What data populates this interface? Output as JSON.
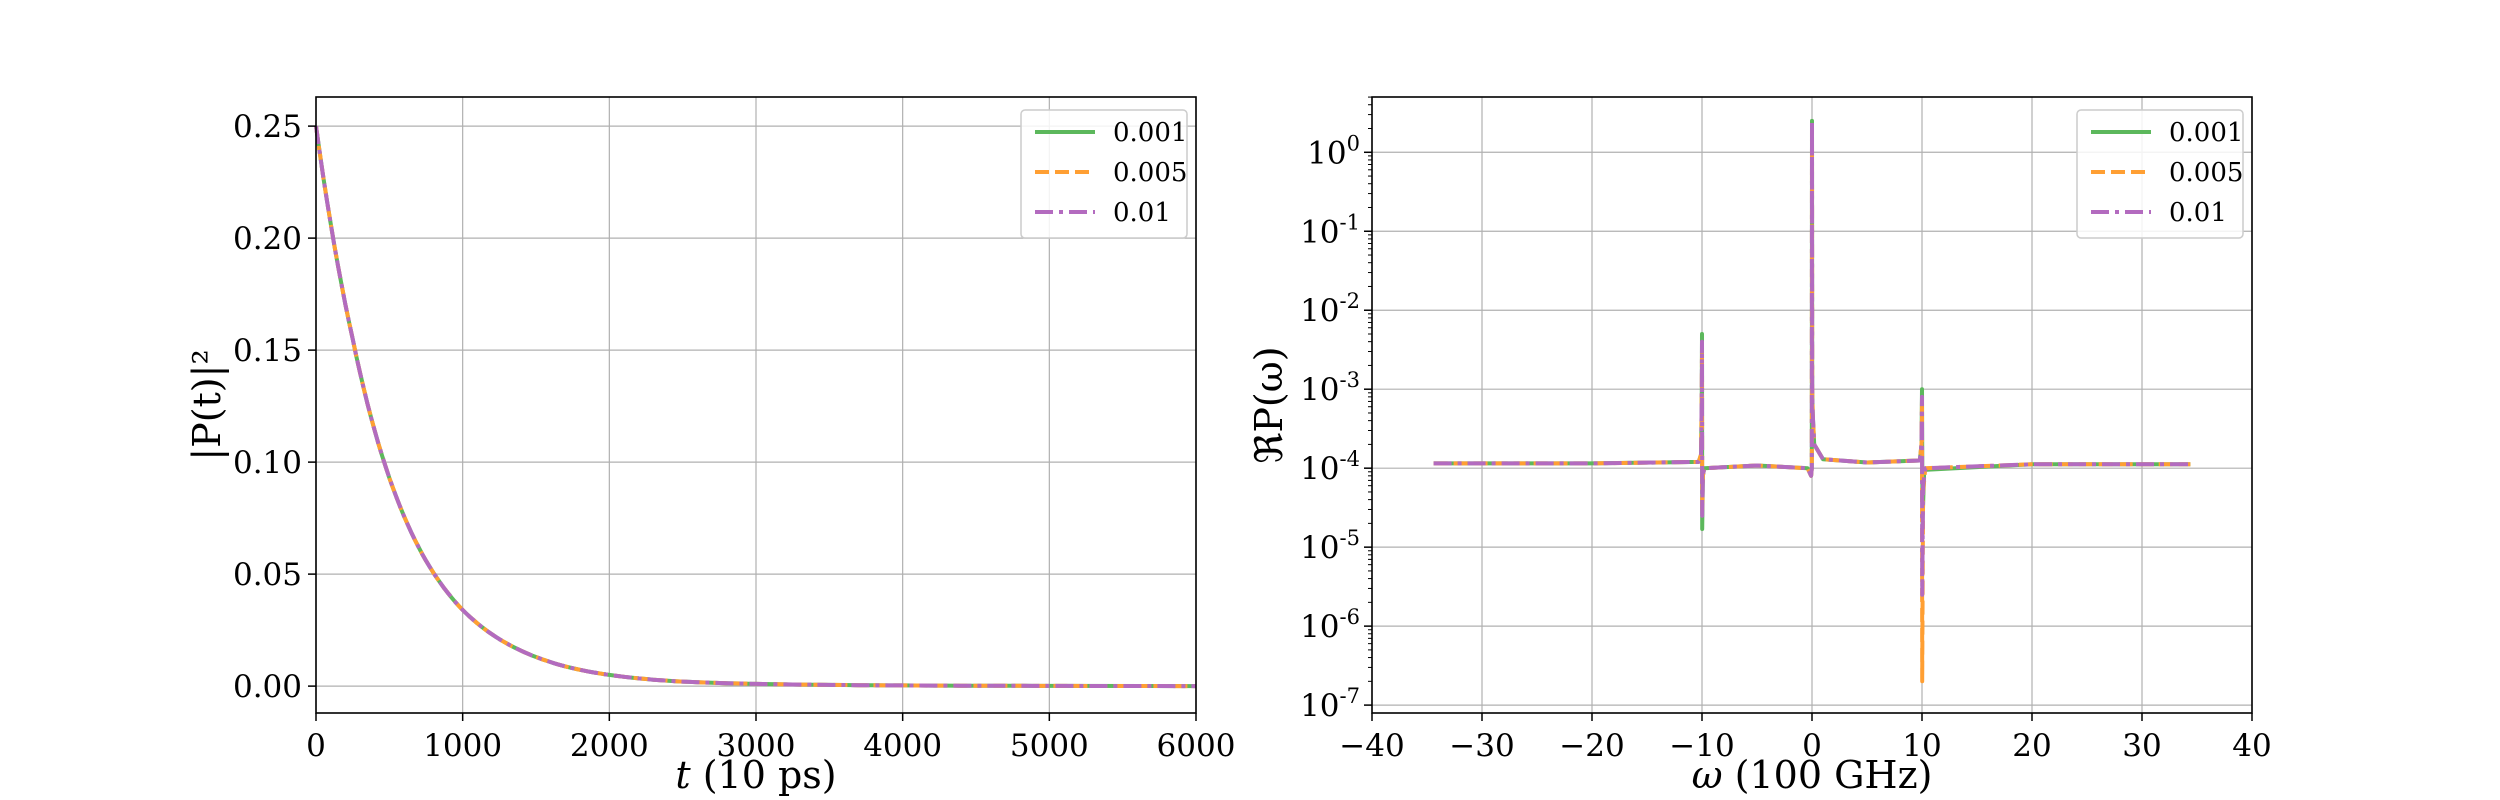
{
  "colors": {
    "s0001": "#5cb85c",
    "s0005": "#ff9f33",
    "s001": "#b36bbf",
    "grid": "#b0b0b0"
  },
  "chart_data": [
    {
      "type": "line",
      "title": "",
      "xlabel_var": "t",
      "xlabel_unit": " (10 ps)",
      "ylabel": "|P(t)|²",
      "xlim": [
        0,
        6000
      ],
      "ylim": [
        -0.012,
        0.263
      ],
      "grid": true,
      "legend": "top-right",
      "xticks": [
        0,
        1000,
        2000,
        3000,
        4000,
        5000,
        6000
      ],
      "xtick_labels": [
        "0",
        "1000",
        "2000",
        "3000",
        "4000",
        "5000",
        "6000"
      ],
      "yticks": [
        0.0,
        0.05,
        0.1,
        0.15,
        0.2,
        0.25
      ],
      "ytick_labels": [
        "0.00",
        "0.05",
        "0.10",
        "0.15",
        "0.20",
        "0.25"
      ],
      "x": [
        0,
        250,
        500,
        750,
        1000,
        1250,
        1500,
        1750,
        2000,
        2500,
        3000,
        4000,
        5000,
        6000
      ],
      "series": [
        {
          "name": "0.001",
          "style": "solid",
          "values": [
            0.25,
            0.155,
            0.093,
            0.056,
            0.034,
            0.021,
            0.013,
            0.008,
            0.005,
            0.002,
            0.001,
            0.0003,
            0.0001,
            0.0
          ]
        },
        {
          "name": "0.005",
          "style": "dashed",
          "values": [
            0.25,
            0.155,
            0.093,
            0.056,
            0.034,
            0.021,
            0.013,
            0.008,
            0.005,
            0.002,
            0.001,
            0.0003,
            0.0001,
            0.0
          ]
        },
        {
          "name": "0.01",
          "style": "dashdot",
          "values": [
            0.25,
            0.155,
            0.093,
            0.056,
            0.034,
            0.021,
            0.013,
            0.008,
            0.005,
            0.002,
            0.001,
            0.0003,
            0.0001,
            0.0
          ]
        }
      ]
    },
    {
      "type": "line",
      "title": "",
      "xlabel_var": "ω",
      "xlabel_unit": " (100 GHz)",
      "ylabel": "ℜP(ω)",
      "xlim": [
        -40,
        40
      ],
      "ylim_log10": [
        -7.1,
        0.7
      ],
      "yscale": "log",
      "grid": true,
      "legend": "top-right",
      "xticks": [
        -40,
        -30,
        -20,
        -10,
        0,
        10,
        20,
        30,
        40
      ],
      "xtick_labels": [
        "−40",
        "−30",
        "−20",
        "−10",
        "0",
        "10",
        "20",
        "30",
        "40"
      ],
      "ytick_exponents": [
        0,
        -1,
        -2,
        -3,
        -4,
        -5,
        -6,
        -7
      ],
      "ytick_base": "10",
      "series": [
        {
          "name": "0.001",
          "style": "solid",
          "x": [
            -34.4,
            -20,
            -10.3,
            -10.08,
            -10.02,
            -10.0,
            -9.98,
            -9.92,
            -9.8,
            -5,
            -0.4,
            -0.08,
            -0.02,
            0.0,
            0.02,
            0.06,
            0.2,
            1,
            5,
            9.8,
            9.95,
            10.0,
            10.05,
            10.2,
            20,
            34.4
          ],
          "y": [
            0.000115,
            0.000115,
            0.00012,
            0.00015,
            0.001,
            0.005,
            1.7e-05,
            8e-05,
            0.0001,
            0.000108,
            0.0001,
            8e-05,
            0.0001,
            2.5,
            0.001,
            0.0005,
            0.0002,
            0.00013,
            0.000118,
            0.000125,
            0.0002,
            0.001,
            2e-05,
            9.5e-05,
            0.000112,
            0.000112
          ]
        },
        {
          "name": "0.005",
          "style": "dashed",
          "x": [
            -34.4,
            -20,
            -10.3,
            -10.08,
            -10.02,
            -10.0,
            -9.98,
            -9.92,
            -9.8,
            -5,
            -0.4,
            -0.08,
            -0.02,
            0.0,
            0.02,
            0.06,
            0.2,
            1,
            5,
            9.8,
            9.95,
            10.0,
            10.02,
            10.1,
            10.3,
            20,
            34.4
          ],
          "y": [
            0.000115,
            0.000115,
            0.00012,
            0.00015,
            0.001,
            0.003,
            3e-05,
            8e-05,
            0.0001,
            0.000108,
            0.0001,
            8e-05,
            0.0001,
            2.3,
            0.001,
            0.0005,
            0.0002,
            0.00013,
            0.000118,
            0.000125,
            0.0002,
            0.0007,
            2e-07,
            5e-05,
            0.0001,
            0.000112,
            0.000112
          ]
        },
        {
          "name": "0.01",
          "style": "dashdot",
          "x": [
            -34.4,
            -20,
            -10.3,
            -10.08,
            -10.02,
            -10.0,
            -9.98,
            -9.92,
            -9.8,
            -5,
            -0.4,
            -0.08,
            -0.02,
            0.0,
            0.02,
            0.06,
            0.2,
            1,
            5,
            9.8,
            9.95,
            10.0,
            10.02,
            10.1,
            10.3,
            20,
            34.4
          ],
          "y": [
            0.000115,
            0.000115,
            0.00012,
            0.00015,
            0.001,
            0.004,
            2.5e-05,
            8e-05,
            0.0001,
            0.000108,
            0.0001,
            8e-05,
            0.0001,
            2.4,
            0.001,
            0.0005,
            0.0002,
            0.00013,
            0.000118,
            0.000125,
            0.0002,
            0.0008,
            2.5e-06,
            6e-05,
            0.0001,
            0.000112,
            0.000112
          ]
        }
      ]
    }
  ]
}
